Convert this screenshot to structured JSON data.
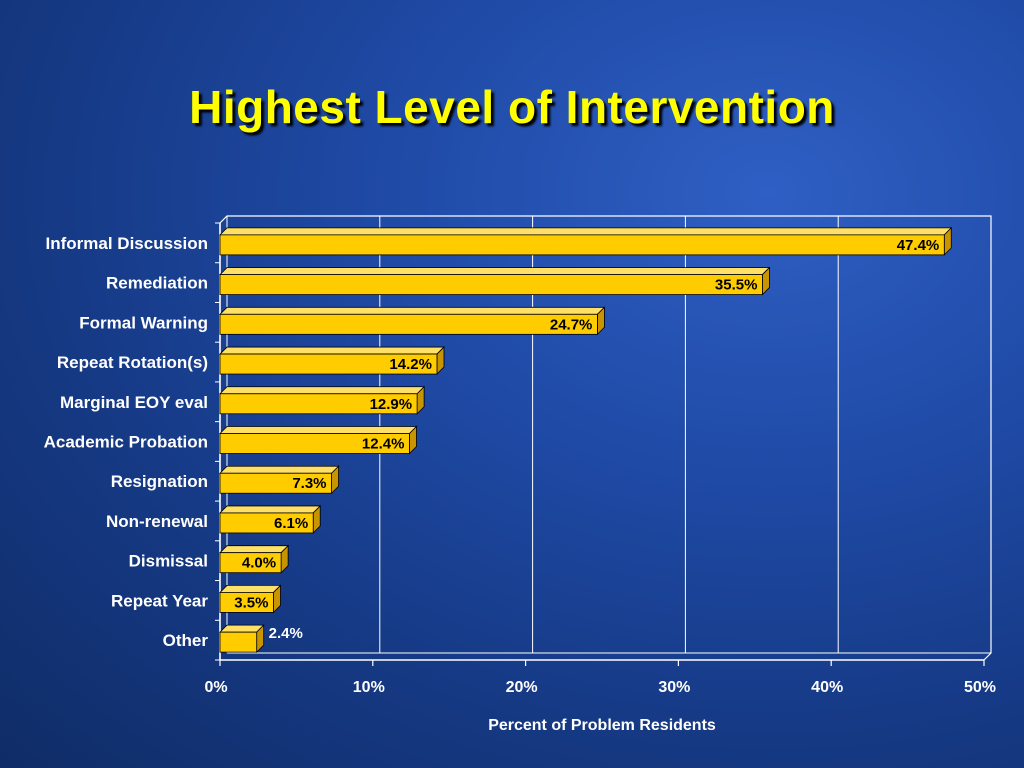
{
  "slide": {
    "title": "Highest Level of Intervention"
  },
  "colors": {
    "background": "#1f4aa6",
    "title": "#ffff00",
    "bar_face": "#ffcc00",
    "bar_top": "#ffe066",
    "bar_side": "#c89400",
    "gridline": "#ffffff",
    "text": "#ffffff"
  },
  "chart_data": {
    "type": "bar",
    "orientation": "horizontal",
    "style": "3d",
    "title": "",
    "xlabel": "Percent of Problem Residents",
    "ylabel": "",
    "xlim": [
      0,
      50
    ],
    "x_ticks": [
      "0%",
      "10%",
      "20%",
      "30%",
      "40%",
      "50%"
    ],
    "grid": true,
    "legend": "none",
    "categories": [
      "Informal Discussion",
      "Remediation",
      "Formal Warning",
      "Repeat Rotation(s)",
      "Marginal EOY eval",
      "Academic Probation",
      "Resignation",
      "Non-renewal",
      "Dismissal",
      "Repeat  Year",
      "Other"
    ],
    "values": [
      47.4,
      35.5,
      24.7,
      14.2,
      12.9,
      12.4,
      7.3,
      6.1,
      4.0,
      3.5,
      2.4
    ],
    "data_labels": [
      "47.4%",
      "35.5%",
      "24.7%",
      "14.2%",
      "12.9%",
      "12.4%",
      "7.3%",
      "6.1%",
      "4.0%",
      "3.5%",
      "2.4%"
    ]
  }
}
